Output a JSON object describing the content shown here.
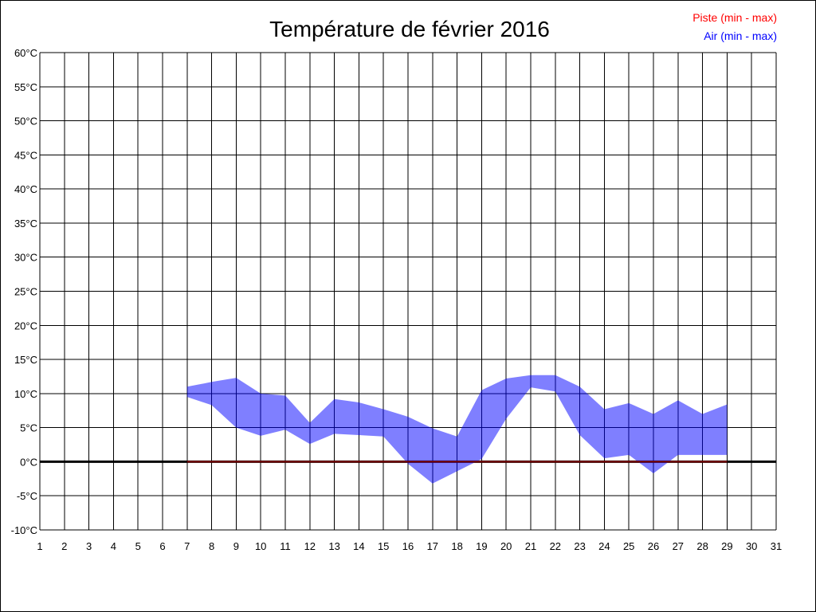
{
  "chart_data": {
    "type": "area",
    "title": "Température de février 2016",
    "xlabel": "",
    "ylabel": "",
    "x_ticks": [
      1,
      2,
      3,
      4,
      5,
      6,
      7,
      8,
      9,
      10,
      11,
      12,
      13,
      14,
      15,
      16,
      17,
      18,
      19,
      20,
      21,
      22,
      23,
      24,
      25,
      26,
      27,
      28,
      29,
      30,
      31
    ],
    "xlim": [
      1,
      31
    ],
    "ylim": [
      -10,
      60
    ],
    "y_tick_step": 5,
    "y_unit": "°C",
    "grid": true,
    "legend_placement": "top-right",
    "series": [
      {
        "name": "Piste (min - max)",
        "color": "#ff0000",
        "x": [
          7,
          8,
          9,
          10,
          11,
          12,
          13,
          14,
          15,
          16,
          17,
          18,
          19,
          20,
          21,
          22,
          23,
          24,
          25,
          26,
          27,
          28,
          29
        ],
        "min": [
          0,
          0,
          0,
          0,
          0,
          0,
          0,
          0,
          0,
          0,
          0,
          0,
          0,
          0,
          0,
          0,
          0,
          0,
          0,
          0,
          0,
          0,
          0
        ],
        "max": [
          0,
          0,
          0,
          0,
          0,
          0,
          0,
          0,
          0,
          0,
          0,
          0,
          0,
          0,
          0,
          0,
          0,
          0,
          0,
          0,
          0,
          0,
          0
        ]
      },
      {
        "name": "Air (min - max)",
        "color": "#0000ff",
        "x": [
          7,
          8,
          9,
          10,
          11,
          12,
          13,
          14,
          15,
          16,
          17,
          18,
          19,
          20,
          21,
          22,
          23,
          24,
          25,
          26,
          27,
          28,
          29
        ],
        "min": [
          9.5,
          8.3,
          5.0,
          3.8,
          4.7,
          2.6,
          4.1,
          3.9,
          3.7,
          -0.3,
          -3.2,
          -1.4,
          0.4,
          6.3,
          10.9,
          10.3,
          3.9,
          0.5,
          1.0,
          -1.7,
          1.0,
          1.0,
          1.0
        ],
        "max": [
          11.0,
          11.7,
          12.3,
          10.0,
          9.7,
          5.7,
          9.2,
          8.7,
          7.7,
          6.6,
          4.9,
          3.7,
          10.5,
          12.2,
          12.7,
          12.7,
          11.0,
          7.7,
          8.6,
          7.0,
          9.0,
          7.0,
          8.4
        ]
      }
    ]
  }
}
